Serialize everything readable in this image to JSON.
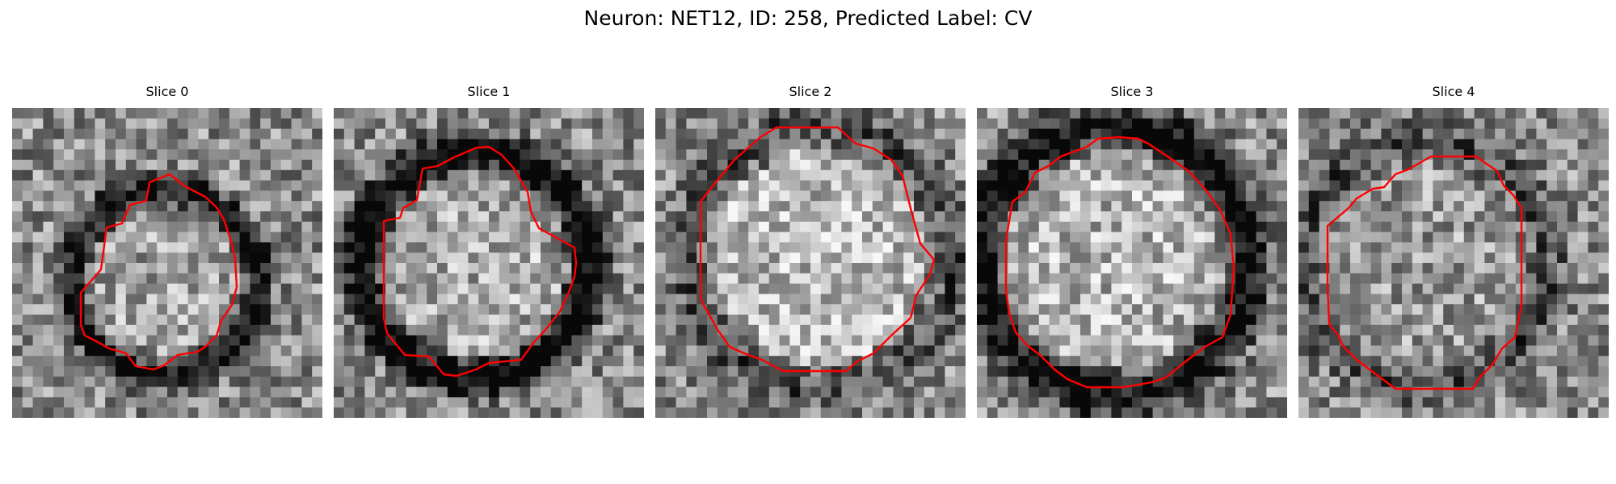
{
  "figure": {
    "title": "Neuron: NET12, ID: 258, Predicted Label: CV"
  },
  "contour_color": "#ff0000",
  "colormap": "grayscale",
  "panels": [
    {
      "title": "Slice 0",
      "seed": 11,
      "ring_darkness": 0.55,
      "center_brightness": 0.08
    },
    {
      "title": "Slice 1",
      "seed": 23,
      "ring_darkness": 0.65,
      "center_brightness": 0.12
    },
    {
      "title": "Slice 2",
      "seed": 37,
      "ring_darkness": 0.25,
      "center_brightness": 0.18
    },
    {
      "title": "Slice 3",
      "seed": 41,
      "ring_darkness": 0.55,
      "center_brightness": 0.15
    },
    {
      "title": "Slice 4",
      "seed": 53,
      "ring_darkness": 0.25,
      "center_brightness": 0.05
    }
  ]
}
